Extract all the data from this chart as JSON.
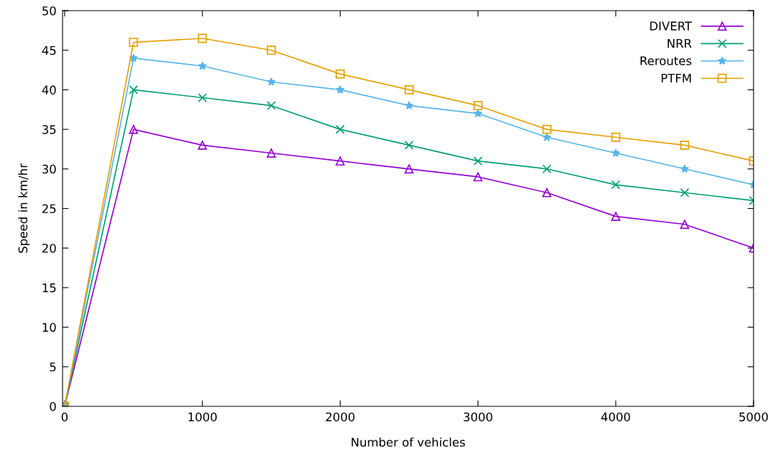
{
  "chart_data": {
    "type": "line",
    "xlabel": "Number of vehicles",
    "ylabel": "Speed in km/hr",
    "x": [
      0,
      500,
      1000,
      1500,
      2000,
      2500,
      3000,
      3500,
      4000,
      4500,
      5000
    ],
    "series": [
      {
        "name": "DIVERT",
        "color": "#9400d3",
        "marker": "triangle",
        "values": [
          0,
          35,
          33,
          32,
          31,
          30,
          29,
          27,
          24,
          23,
          20
        ]
      },
      {
        "name": "NRR",
        "color": "#009e73",
        "marker": "cross",
        "values": [
          0,
          40,
          39,
          38,
          35,
          33,
          31,
          30,
          28,
          27,
          26
        ]
      },
      {
        "name": "Reroutes",
        "color": "#56b4e9",
        "marker": "star",
        "values": [
          0,
          44,
          43,
          41,
          40,
          38,
          37,
          34,
          32,
          30,
          28
        ]
      },
      {
        "name": "PTFM",
        "color": "#e69f00",
        "marker": "square",
        "values": [
          0,
          46,
          46.5,
          45,
          42,
          40,
          38,
          35,
          34,
          33,
          31
        ]
      }
    ],
    "xlim": [
      -15,
      5000
    ],
    "xticks": [
      0,
      1000,
      2000,
      3000,
      4000,
      5000
    ],
    "ylim": [
      0,
      50
    ],
    "yticks": [
      0,
      5,
      10,
      15,
      20,
      25,
      30,
      35,
      40,
      45,
      50
    ],
    "grid": false,
    "legend": "top right",
    "line_style": "solid"
  }
}
